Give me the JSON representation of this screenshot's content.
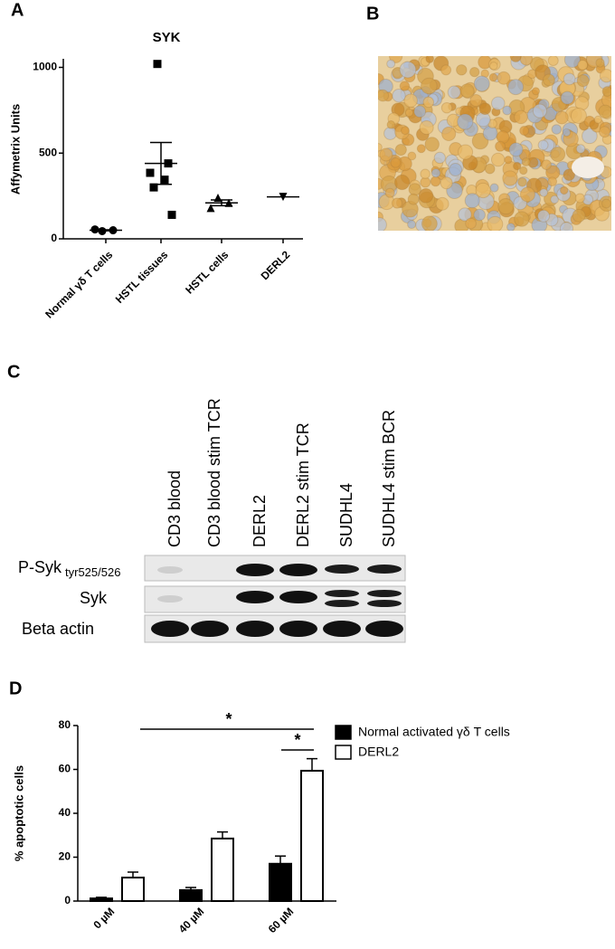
{
  "panel_labels": [
    "A",
    "B",
    "C",
    "D"
  ],
  "chart_data": [
    {
      "type": "dotplot",
      "title": "SYK",
      "ylabel": "Affymetrix Units",
      "categories": [
        "Normal γδ T cells",
        "HSTL tissues",
        "HSTL cells",
        "DERL2"
      ],
      "groups": [
        [
          45,
          50,
          55
        ],
        [
          1020,
          440,
          385,
          345,
          300,
          140
        ],
        [
          240,
          210,
          180
        ],
        [
          245
        ]
      ],
      "means": [
        50,
        440,
        210,
        245
      ],
      "errors": [
        3,
        122,
        17,
        null
      ],
      "markers": [
        "circle",
        "square",
        "triangle",
        "triangle-down"
      ],
      "color": "#000000",
      "ylim": [
        0,
        1050
      ],
      "yticks": [
        0,
        500,
        1000
      ]
    },
    {
      "type": "bar",
      "ylabel": "% apoptotic cells",
      "categories": [
        "0 µM",
        "40 µM",
        "60 µM"
      ],
      "series": [
        {
          "name": "Normal activated γδ T cells",
          "color": "#000000",
          "values": [
            1.2,
            5,
            17
          ],
          "errors": [
            0.5,
            1.2,
            3.5
          ]
        },
        {
          "name": "DERL2",
          "color": "#ffffff",
          "values": [
            10.7,
            28.5,
            59.4
          ],
          "errors": [
            2.5,
            3,
            5.5
          ]
        }
      ],
      "ylim": [
        0,
        80
      ],
      "yticks": [
        0,
        20,
        40,
        60,
        80
      ],
      "annotations": [
        "*",
        "*"
      ],
      "legend": "right"
    }
  ],
  "blot": {
    "lanes": [
      "CD3 blood",
      "CD3 blood stim TCR",
      "DERL2",
      "DERL2 stim TCR",
      "SUDHL4",
      "SUDHL4 stim BCR"
    ],
    "rows": [
      {
        "label": "P-Syk",
        "subscript": "tyr525/526"
      },
      {
        "label": "Syk"
      },
      {
        "label": "Beta actin"
      }
    ]
  }
}
